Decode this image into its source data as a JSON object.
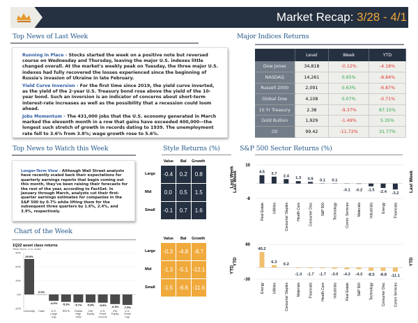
{
  "header": {
    "title": "Market Recap: ",
    "date_range": "3/28 - 4/1",
    "logo": "crown-logo"
  },
  "top_news": {
    "heading": "Top News of Last Week",
    "items": [
      {
        "lead": "Running in Place - ",
        "text": "Stocks started the week on a positive note but reversed course on Wednesday and Thursday, leaving the major U.S. indexes little changed overall. At the market's weekly peak on Tuesday, the three major U.S. indexes had fully recovered the losses experienced since the beginning of Russia's invasion of Ukraine in late February."
      },
      {
        "lead": "Yield Curve Inversion - ",
        "text": "For the first time since 2019, the yield curve inverted, as the yield of the 2-year U.S. Treasury bond rose above the yield of the 10-year bond. Such an inversion is an indicator of concerns about short-term interest-rate increases as well as the possibility that a recession could loom ahead."
      },
      {
        "lead": "Jobs Momentum - ",
        "text": "The 431,000 jobs that the U.S. economy generated in March marked the eleventh month in a row that gains have exceeded 400,000—the longest such stretch of growth in records dating to 1939. The unemployment rate fell to 3.6% from 3.8%; wage growth rose to 5.6%."
      }
    ]
  },
  "indices": {
    "heading": "Major Indices Returns",
    "columns": [
      "",
      "Level",
      "Week",
      "YTD"
    ],
    "rows": [
      {
        "name": "Dow Jones",
        "level": "34,818",
        "week": "-0.12%",
        "ytd": "-4.18%"
      },
      {
        "name": "NASDAQ",
        "level": "14,261",
        "week": "0.65%",
        "ytd": "-8.84%"
      },
      {
        "name": "Russell 2000",
        "level": "2,091",
        "week": "0.63%",
        "ytd": "-6.87%"
      },
      {
        "name": "Global Dow",
        "level": "4,108",
        "week": "0.07%",
        "ytd": "-0.71%"
      },
      {
        "name": "10 Yr Treasury",
        "level": "2.38",
        "week": "-9.37%",
        "ytd": "87.15%"
      },
      {
        "name": "Gold Bullion",
        "level": "1,929",
        "week": "-1.49%",
        "ytd": "5.35%"
      },
      {
        "name": "Oil",
        "level": "99.42",
        "week": "-11.72%",
        "ytd": "31.77%"
      }
    ]
  },
  "watch": {
    "heading": "Top News to Watch this Week",
    "lead": "Longer-Term View - ",
    "text": "Although Wall Street analysts have recently scaled back their expectations for quarterly earnings reports that begin coming out this month, they've been raising their forecasts for the rest of the year, according to FactSet. In January through March, analysts cut their first-quarter earnings estimates for companies in the S&P 500 by 0.7% while lifting them for the subsequent three quarters by 1.6%, 2.4%, and 3.9%, respectively."
  },
  "style": {
    "heading": "Style Returns (%)",
    "cols": [
      "Value",
      "Bal",
      "Growth"
    ],
    "rows": [
      "Large",
      "Mid",
      "Small"
    ],
    "last_week_label": "Last Week",
    "ytd_label": "YTD",
    "last_week": [
      [
        "-0.4",
        "0.2",
        "0.8"
      ],
      [
        "0.0",
        "0.5",
        "1.5"
      ],
      [
        "-0.1",
        "0.7",
        "1.6"
      ]
    ],
    "ytd": [
      [
        "-0.3",
        "-4.8",
        "-8.7"
      ],
      [
        "-1.3",
        "-5.1",
        "-12.1"
      ],
      [
        "-1.5",
        "-6.6",
        "-11.6"
      ]
    ]
  },
  "colors": {
    "navy": "#253041",
    "orange": "#f0a93b",
    "negative": "#e0322b",
    "positive": "#2aa84a"
  },
  "chart_week_heading": "Chart of the Week",
  "sector_heading": "S&P 500 Sector Returns (%)",
  "chart_data": [
    {
      "type": "bar",
      "title": "",
      "ylabel": "Last Week",
      "ylim": [
        -8,
        10
      ],
      "yticks": [
        "10",
        "-8"
      ],
      "categories": [
        "Real Estate",
        "Utilities",
        "Consumer Staples",
        "Health Care",
        "Consumer Disc",
        "S&P 500",
        "Technology",
        "Comm. Services",
        "Materials",
        "Industrials",
        "Energy",
        "Financials"
      ],
      "values": [
        4.5,
        3.7,
        2.4,
        1.3,
        0.9,
        0.1,
        0.1,
        -0.1,
        -0.2,
        -1.5,
        -2.4,
        -3.2
      ],
      "labels": [
        "4.5",
        "3.7",
        "2.4",
        "1.3",
        "0.9",
        "0.1",
        "0.1",
        "-0.1",
        "-0.2",
        "-1.5",
        "-2.4",
        "-3.2"
      ],
      "color": "#253041"
    },
    {
      "type": "bar",
      "title": "",
      "ylabel": "YTD",
      "ylim": [
        -30,
        60
      ],
      "yticks": [
        "60",
        "-30"
      ],
      "categories": [
        "Energy",
        "Utilities",
        "Consumer Staples",
        "Materials",
        "Financials",
        "Health Care",
        "Industrials",
        "Real Estate",
        "S&P 500",
        "Technology",
        "Consumer Disc",
        "Comm Services"
      ],
      "values": [
        40.2,
        6.3,
        0.2,
        -1.3,
        -1.7,
        -1.7,
        -3.0,
        -4.3,
        -4.3,
        -8.5,
        -8.8,
        -11.1
      ],
      "labels": [
        "40.2",
        "6.3",
        "0.2",
        "-1.3",
        "-1.7",
        "-1.7",
        "-3.0",
        "-4.3",
        "-4.3",
        "-8.5",
        "-8.8",
        "-11.1"
      ],
      "color": "#f0c070"
    },
    {
      "type": "bar",
      "title": "1Q22 asset class returns",
      "subtitle": "Total return, U.S. dollar",
      "ylim": [
        -10,
        30
      ],
      "yticks": [
        "30%",
        "20%",
        "10%",
        "0%",
        "-10%"
      ],
      "categories": [
        "Commdty.",
        "Cash",
        "U.S. Large Cap",
        "REITs",
        "Global High Yield",
        "DM Equity",
        "U.S. Fixed Income",
        "EM Equity",
        "U.S. Small Cap"
      ],
      "values": [
        25.5,
        0.0,
        -4.6,
        -5.3,
        -5.7,
        -5.8,
        -5.9,
        -6.9,
        -7.5
      ],
      "labels": [
        "25.5%",
        "0.0%",
        "-4.6%",
        "-5.3%",
        "-5.7%",
        "-5.8%",
        "-5.9%",
        "-6.9%",
        "-7.5%"
      ],
      "color": "#4a4a4a"
    }
  ]
}
